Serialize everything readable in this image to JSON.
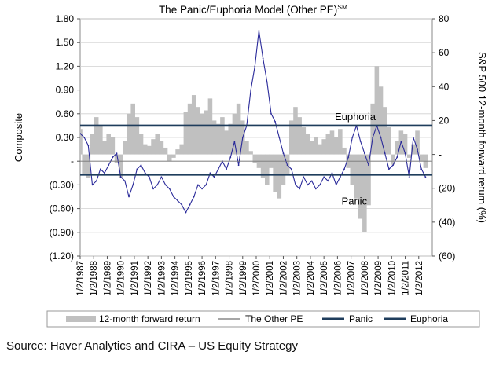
{
  "chart_data": {
    "type": "line",
    "title": "The Panic/Euphoria Model (Other PE)",
    "title_superscript": "SM",
    "ylabel_left": "Composite",
    "ylabel_right": "S&P 500 12-month forward return (%)",
    "left_axis": {
      "range": [
        -1.2,
        1.8
      ],
      "ticks": [
        1.8,
        1.5,
        1.2,
        0.9,
        0.6,
        0.3,
        0,
        -0.3,
        -0.6,
        -0.9,
        -1.2
      ],
      "tick_labels": [
        "1.80",
        "1.50",
        "1.20",
        "0.90",
        "0.60",
        "0.30",
        "-",
        "(0.30)",
        "(0.60)",
        "(0.90)",
        "(1.20)"
      ]
    },
    "right_axis": {
      "range": [
        -60,
        80
      ],
      "ticks": [
        80,
        60,
        40,
        20,
        0,
        -20,
        -40,
        -60
      ],
      "tick_labels": [
        "80",
        "60",
        "40",
        "20",
        "-",
        "(20)",
        "(40)",
        "(60)"
      ]
    },
    "x_tick_labels": [
      "1/2/1987",
      "1/2/1988",
      "1/2/1989",
      "1/2/1990",
      "1/2/1991",
      "1/2/1992",
      "1/2/1993",
      "1/2/1994",
      "1/2/1995",
      "1/2/1996",
      "1/2/1997",
      "1/2/1998",
      "1/2/1999",
      "1/2/2000",
      "1/2/2001",
      "1/2/2002",
      "1/2/2003",
      "1/2/2004",
      "1/2/2005",
      "1/2/2006",
      "1/2/2007",
      "1/2/2008",
      "1/2/2009",
      "1/2/2010",
      "1/2/2011",
      "1/2/2012"
    ],
    "x_range": [
      1987.0,
      2013.0
    ],
    "reference_lines": [
      {
        "name": "Euphoria",
        "value": 0.45
      },
      {
        "name": "Panic",
        "value": -0.17
      }
    ],
    "annotations": [
      {
        "text": "Euphoria",
        "x": 2005.8,
        "y": 0.52
      },
      {
        "text": "Panic",
        "x": 2006.3,
        "y": -0.55
      }
    ],
    "series": [
      {
        "name": "12-month forward return",
        "axis": "right",
        "kind": "area",
        "x": [
          1987.0,
          1987.3,
          1987.6,
          1987.9,
          1988.2,
          1988.5,
          1988.8,
          1989.1,
          1989.4,
          1989.7,
          1990.0,
          1990.3,
          1990.6,
          1990.9,
          1991.2,
          1991.5,
          1991.8,
          1992.1,
          1992.4,
          1992.7,
          1993.0,
          1993.3,
          1993.6,
          1993.9,
          1994.2,
          1994.5,
          1994.8,
          1995.1,
          1995.4,
          1995.7,
          1996.0,
          1996.3,
          1996.6,
          1996.9,
          1997.2,
          1997.5,
          1997.8,
          1998.1,
          1998.4,
          1998.7,
          1999.0,
          1999.3,
          1999.6,
          1999.9,
          2000.2,
          2000.5,
          2000.8,
          2001.1,
          2001.4,
          2001.7,
          2002.0,
          2002.3,
          2002.6,
          2002.9,
          2003.2,
          2003.5,
          2003.8,
          2004.1,
          2004.4,
          2004.7,
          2005.0,
          2005.3,
          2005.6,
          2005.9,
          2006.2,
          2006.5,
          2006.8,
          2007.1,
          2007.4,
          2007.7,
          2008.0,
          2008.3,
          2008.6,
          2008.9,
          2009.2,
          2009.5,
          2009.8,
          2010.1,
          2010.4,
          2010.7,
          2011.0,
          2011.3,
          2011.6,
          2011.9,
          2012.2,
          2012.5
        ],
        "values": [
          15,
          -12,
          -14,
          12,
          22,
          17,
          8,
          12,
          10,
          -5,
          -14,
          8,
          24,
          30,
          22,
          12,
          6,
          5,
          9,
          12,
          8,
          4,
          -4,
          -2,
          3,
          6,
          25,
          30,
          35,
          28,
          24,
          26,
          33,
          20,
          18,
          22,
          14,
          18,
          24,
          30,
          20,
          8,
          2,
          -5,
          -8,
          -14,
          -18,
          -8,
          -22,
          -26,
          -18,
          -12,
          20,
          28,
          22,
          16,
          12,
          8,
          10,
          6,
          9,
          12,
          14,
          10,
          15,
          4,
          -8,
          -18,
          -26,
          -38,
          -46,
          -30,
          30,
          52,
          40,
          28,
          16,
          -6,
          8,
          14,
          12,
          -2,
          6,
          14,
          -4,
          -8
        ]
      },
      {
        "name": "The Other PE",
        "axis": "left",
        "kind": "line",
        "x": [
          1987.0,
          1987.3,
          1987.6,
          1987.9,
          1988.2,
          1988.5,
          1988.8,
          1989.1,
          1989.4,
          1989.7,
          1990.0,
          1990.3,
          1990.6,
          1990.9,
          1991.2,
          1991.5,
          1991.8,
          1992.1,
          1992.4,
          1992.7,
          1993.0,
          1993.3,
          1993.6,
          1993.9,
          1994.2,
          1994.5,
          1994.8,
          1995.1,
          1995.4,
          1995.7,
          1996.0,
          1996.3,
          1996.6,
          1996.9,
          1997.2,
          1997.5,
          1997.8,
          1998.1,
          1998.4,
          1998.7,
          1999.0,
          1999.3,
          1999.6,
          1999.9,
          2000.2,
          2000.5,
          2000.8,
          2001.1,
          2001.4,
          2001.7,
          2002.0,
          2002.3,
          2002.6,
          2002.9,
          2003.2,
          2003.5,
          2003.8,
          2004.1,
          2004.4,
          2004.7,
          2005.0,
          2005.3,
          2005.6,
          2005.9,
          2006.2,
          2006.5,
          2006.8,
          2007.1,
          2007.4,
          2007.7,
          2008.0,
          2008.3,
          2008.6,
          2008.9,
          2009.2,
          2009.5,
          2009.8,
          2010.1,
          2010.4,
          2010.7,
          2011.0,
          2011.3,
          2011.6,
          2011.9,
          2012.2,
          2012.5
        ],
        "values": [
          0.35,
          0.3,
          0.2,
          -0.3,
          -0.25,
          -0.1,
          -0.15,
          -0.05,
          0.05,
          0.1,
          -0.2,
          -0.25,
          -0.45,
          -0.3,
          -0.1,
          -0.05,
          -0.15,
          -0.2,
          -0.35,
          -0.3,
          -0.2,
          -0.3,
          -0.35,
          -0.45,
          -0.5,
          -0.55,
          -0.65,
          -0.55,
          -0.45,
          -0.3,
          -0.35,
          -0.3,
          -0.15,
          -0.2,
          -0.1,
          0.0,
          -0.1,
          0.05,
          0.25,
          -0.05,
          0.3,
          0.45,
          0.9,
          1.2,
          1.65,
          1.3,
          1.0,
          0.6,
          0.5,
          0.3,
          0.1,
          -0.05,
          -0.1,
          -0.3,
          -0.35,
          -0.2,
          -0.3,
          -0.25,
          -0.35,
          -0.3,
          -0.2,
          -0.25,
          -0.15,
          -0.3,
          -0.2,
          -0.1,
          0.05,
          0.3,
          0.45,
          0.25,
          0.1,
          -0.05,
          0.3,
          0.45,
          0.3,
          0.1,
          -0.1,
          -0.05,
          0.05,
          0.25,
          0.1,
          -0.2,
          0.3,
          0.15,
          -0.1,
          -0.2
        ]
      }
    ],
    "legend": {
      "position": "bottom",
      "entries": [
        "12-month forward return",
        "The Other PE",
        "Panic",
        "Euphoria"
      ]
    },
    "colors": {
      "area": "#c0c0c0",
      "line": "#2a2a9a",
      "reference": "#1f3d5c",
      "legend_line": "#888888"
    }
  },
  "source": "Source: Haver Analytics and CIRA – US Equity Strategy"
}
